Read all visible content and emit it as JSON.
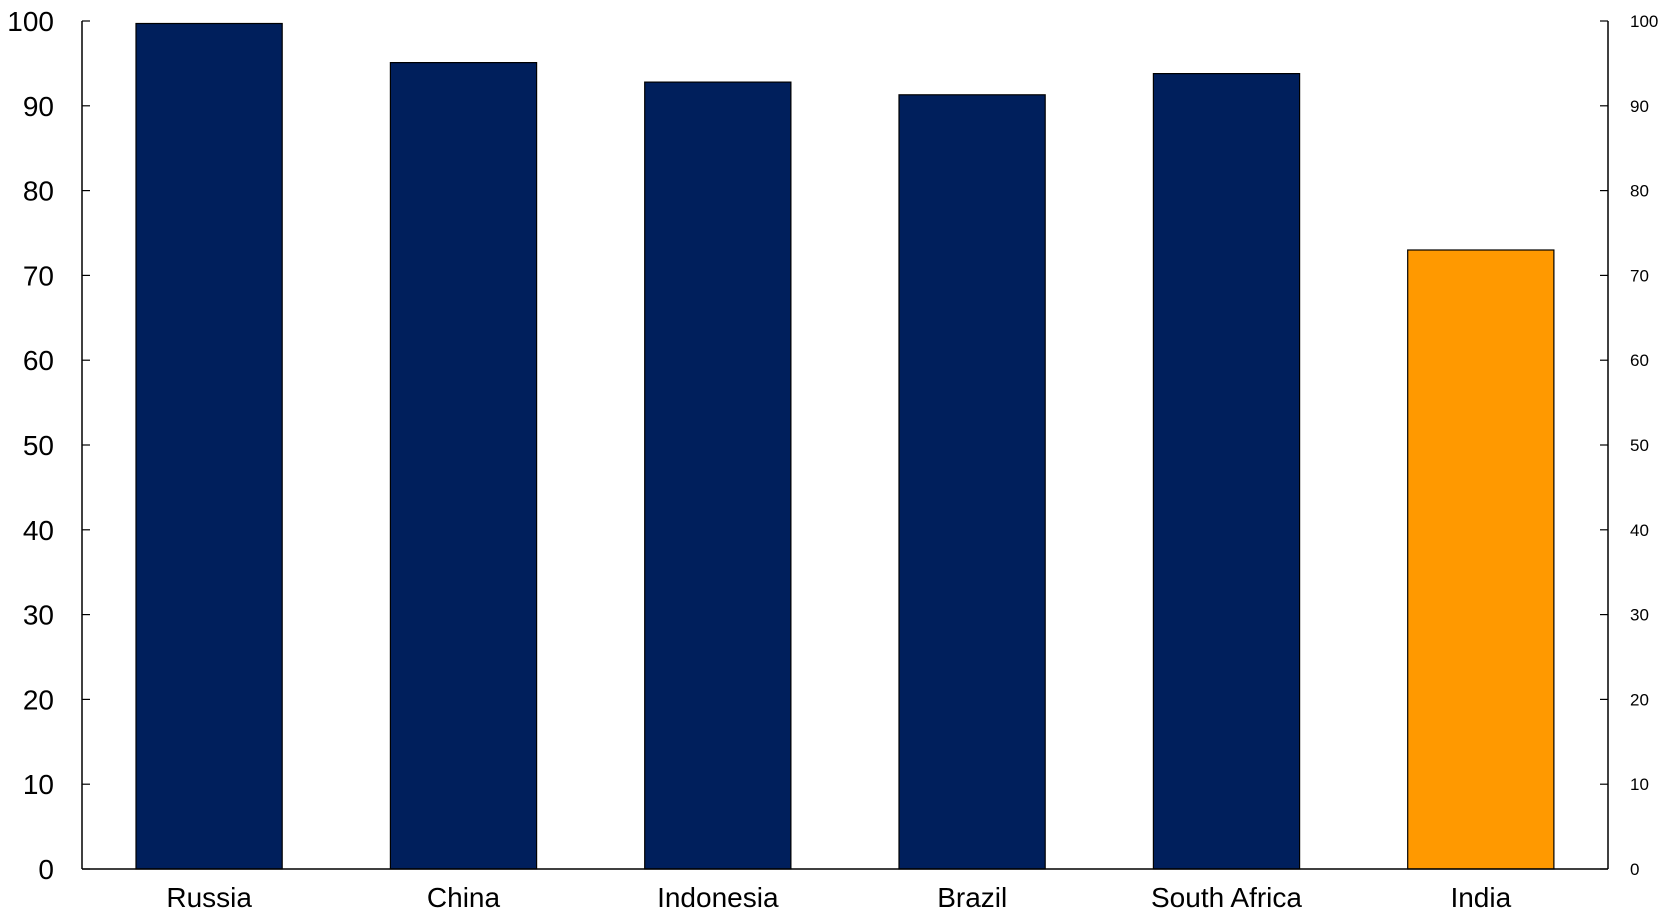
{
  "chart_data": {
    "type": "bar",
    "categories": [
      "Russia",
      "China",
      "Indonesia",
      "Brazil",
      "South Africa",
      "India"
    ],
    "values": [
      99.7,
      95.1,
      92.8,
      91.3,
      93.8,
      73.0
    ],
    "bar_colors": [
      "#001f5c",
      "#001f5c",
      "#001f5c",
      "#001f5c",
      "#001f5c",
      "#ff9900"
    ],
    "title": "",
    "xlabel": "",
    "ylabel": "",
    "ylim": [
      0,
      100
    ],
    "yticks": [
      0,
      10,
      20,
      30,
      40,
      50,
      60,
      70,
      80,
      90,
      100
    ],
    "secondary_yticks": [
      0,
      10,
      20,
      30,
      40,
      50,
      60,
      70,
      80,
      90,
      100
    ],
    "grid": false,
    "legend": "none"
  }
}
